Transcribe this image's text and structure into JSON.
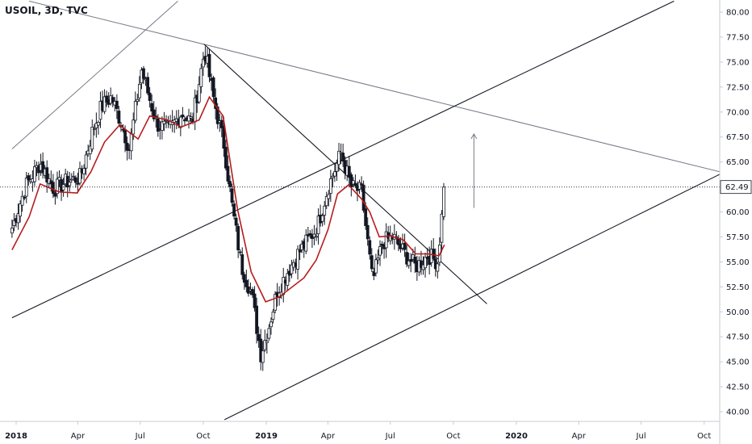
{
  "header": {
    "title": "USOIL, 3D, TVC"
  },
  "colors": {
    "background": "#ffffff",
    "candle": "#131722",
    "moving_average": "#b71c1c",
    "trendline": "#131722",
    "grey_line": "#787b86",
    "price_line": "#131722"
  },
  "chart_data": {
    "type": "candlestick",
    "title": "USOIL, 3D, TVC",
    "x_axis": {
      "labels": [
        "2018",
        "Apr",
        "Jul",
        "Oct",
        "2019",
        "Apr",
        "Jul",
        "Oct",
        "2020",
        "Apr",
        "Jul",
        "Oct"
      ],
      "dates": [
        "2018-01-01",
        "2018-04-01",
        "2018-07-01",
        "2018-10-01",
        "2019-01-01",
        "2019-04-01",
        "2019-07-01",
        "2019-10-01",
        "2020-01-01",
        "2020-04-01",
        "2020-07-01",
        "2020-10-01"
      ],
      "bold_labels": [
        "2018",
        "2019",
        "2020"
      ]
    },
    "y_axis": {
      "position": "right",
      "ylim": [
        39.2,
        81.1
      ],
      "ticks": [
        "80.00",
        "77.50",
        "75.00",
        "72.50",
        "70.00",
        "67.50",
        "65.00",
        "62.50",
        "60.00",
        "57.50",
        "55.00",
        "52.50",
        "50.00",
        "47.50",
        "45.00",
        "42.50",
        "40.00"
      ]
    },
    "last_price": {
      "label": "62.49",
      "value": 62.49
    },
    "series": [
      {
        "name": "",
        "type": "candlestick",
        "points": [
          {
            "date": "2017-12-26",
            "close": 58.4
          },
          {
            "date": "2018-01-15",
            "close": 62.6
          },
          {
            "date": "2018-02-05",
            "close": 64.9
          },
          {
            "date": "2018-02-25",
            "close": 62.3
          },
          {
            "date": "2018-03-15",
            "close": 63.0
          },
          {
            "date": "2018-04-05",
            "close": 63.5
          },
          {
            "date": "2018-04-22",
            "close": 68.0
          },
          {
            "date": "2018-05-05",
            "close": 70.5
          },
          {
            "date": "2018-05-20",
            "close": 71.5
          },
          {
            "date": "2018-06-03",
            "close": 69.0
          },
          {
            "date": "2018-06-15",
            "close": 66.3
          },
          {
            "date": "2018-07-03",
            "close": 74.2
          },
          {
            "date": "2018-07-25",
            "close": 68.8
          },
          {
            "date": "2018-08-12",
            "close": 68.2
          },
          {
            "date": "2018-08-30",
            "close": 69.9
          },
          {
            "date": "2018-09-15",
            "close": 69.0
          },
          {
            "date": "2018-10-03",
            "close": 76.2
          },
          {
            "date": "2018-10-17",
            "close": 71.0
          },
          {
            "date": "2018-10-31",
            "close": 66.8
          },
          {
            "date": "2018-11-12",
            "close": 60.6
          },
          {
            "date": "2018-11-26",
            "close": 54.5
          },
          {
            "date": "2018-12-10",
            "close": 52.0
          },
          {
            "date": "2018-12-24",
            "close": 45.8
          },
          {
            "date": "2019-01-04",
            "close": 48.3
          },
          {
            "date": "2019-01-17",
            "close": 52.1
          },
          {
            "date": "2019-02-01",
            "close": 54.0
          },
          {
            "date": "2019-02-15",
            "close": 55.7
          },
          {
            "date": "2019-03-01",
            "close": 57.0
          },
          {
            "date": "2019-03-16",
            "close": 58.4
          },
          {
            "date": "2019-04-01",
            "close": 62.4
          },
          {
            "date": "2019-04-20",
            "close": 65.9
          },
          {
            "date": "2019-05-05",
            "close": 62.5
          },
          {
            "date": "2019-05-20",
            "close": 62.0
          },
          {
            "date": "2019-06-05",
            "close": 53.0
          },
          {
            "date": "2019-06-20",
            "close": 57.0
          },
          {
            "date": "2019-07-05",
            "close": 57.5
          },
          {
            "date": "2019-07-20",
            "close": 56.0
          },
          {
            "date": "2019-08-07",
            "close": 54.5
          },
          {
            "date": "2019-08-25",
            "close": 55.7
          },
          {
            "date": "2019-09-08",
            "close": 55.0
          },
          {
            "date": "2019-09-18",
            "close": 62.49
          }
        ]
      },
      {
        "name": "",
        "type": "line",
        "points": [
          {
            "date": "2017-12-26",
            "value": 56.2
          },
          {
            "date": "2018-01-20",
            "value": 59.5
          },
          {
            "date": "2018-02-05",
            "value": 62.8
          },
          {
            "date": "2018-03-05",
            "value": 62.0
          },
          {
            "date": "2018-03-31",
            "value": 61.9
          },
          {
            "date": "2018-04-20",
            "value": 64.0
          },
          {
            "date": "2018-05-10",
            "value": 67.0
          },
          {
            "date": "2018-06-01",
            "value": 68.7
          },
          {
            "date": "2018-06-28",
            "value": 67.3
          },
          {
            "date": "2018-07-15",
            "value": 69.6
          },
          {
            "date": "2018-08-10",
            "value": 69.2
          },
          {
            "date": "2018-08-30",
            "value": 68.5
          },
          {
            "date": "2018-09-25",
            "value": 69.2
          },
          {
            "date": "2018-10-10",
            "value": 71.5
          },
          {
            "date": "2018-10-30",
            "value": 69.6
          },
          {
            "date": "2018-11-20",
            "value": 60.3
          },
          {
            "date": "2018-12-10",
            "value": 54.0
          },
          {
            "date": "2018-12-31",
            "value": 51.0
          },
          {
            "date": "2019-01-20",
            "value": 51.5
          },
          {
            "date": "2019-02-25",
            "value": 53.4
          },
          {
            "date": "2019-03-15",
            "value": 55.2
          },
          {
            "date": "2019-04-01",
            "value": 58.2
          },
          {
            "date": "2019-04-15",
            "value": 61.8
          },
          {
            "date": "2019-05-01",
            "value": 62.7
          },
          {
            "date": "2019-05-20",
            "value": 61.3
          },
          {
            "date": "2019-06-01",
            "value": 60.0
          },
          {
            "date": "2019-06-15",
            "value": 57.5
          },
          {
            "date": "2019-07-01",
            "value": 57.6
          },
          {
            "date": "2019-07-20",
            "value": 57.2
          },
          {
            "date": "2019-08-07",
            "value": 55.8
          },
          {
            "date": "2019-08-25",
            "value": 55.8
          },
          {
            "date": "2019-09-10",
            "value": 55.6
          },
          {
            "date": "2019-09-18",
            "value": 56.7
          }
        ]
      }
    ],
    "drawings": [
      {
        "type": "trendline",
        "color": "grey",
        "points": [
          {
            "date": "2017-12-26",
            "value": 66.3
          },
          {
            "date": "2018-08-25",
            "value": 81.1
          }
        ]
      },
      {
        "type": "trendline",
        "color": "grey",
        "points": [
          {
            "date": "2018-01-20",
            "value": 81.1
          },
          {
            "date": "2020-12-05",
            "value": 63.3
          }
        ]
      },
      {
        "type": "trendline",
        "color": "black",
        "points": [
          {
            "date": "2018-10-02",
            "value": 76.8
          },
          {
            "date": "2019-11-19",
            "value": 50.8
          }
        ]
      },
      {
        "type": "trendline",
        "color": "black",
        "points": [
          {
            "date": "2017-12-26",
            "value": 49.4
          },
          {
            "date": "2020-08-18",
            "value": 81.1
          }
        ]
      },
      {
        "type": "trendline",
        "color": "black",
        "points": [
          {
            "date": "2018-11-01",
            "value": 39.2
          },
          {
            "date": "2020-12-05",
            "value": 65.2
          }
        ]
      },
      {
        "type": "arrow",
        "points": [
          {
            "date": "2019-10-31",
            "value": 60.4
          },
          {
            "date": "2019-10-31",
            "value": 67.8
          }
        ]
      }
    ]
  }
}
